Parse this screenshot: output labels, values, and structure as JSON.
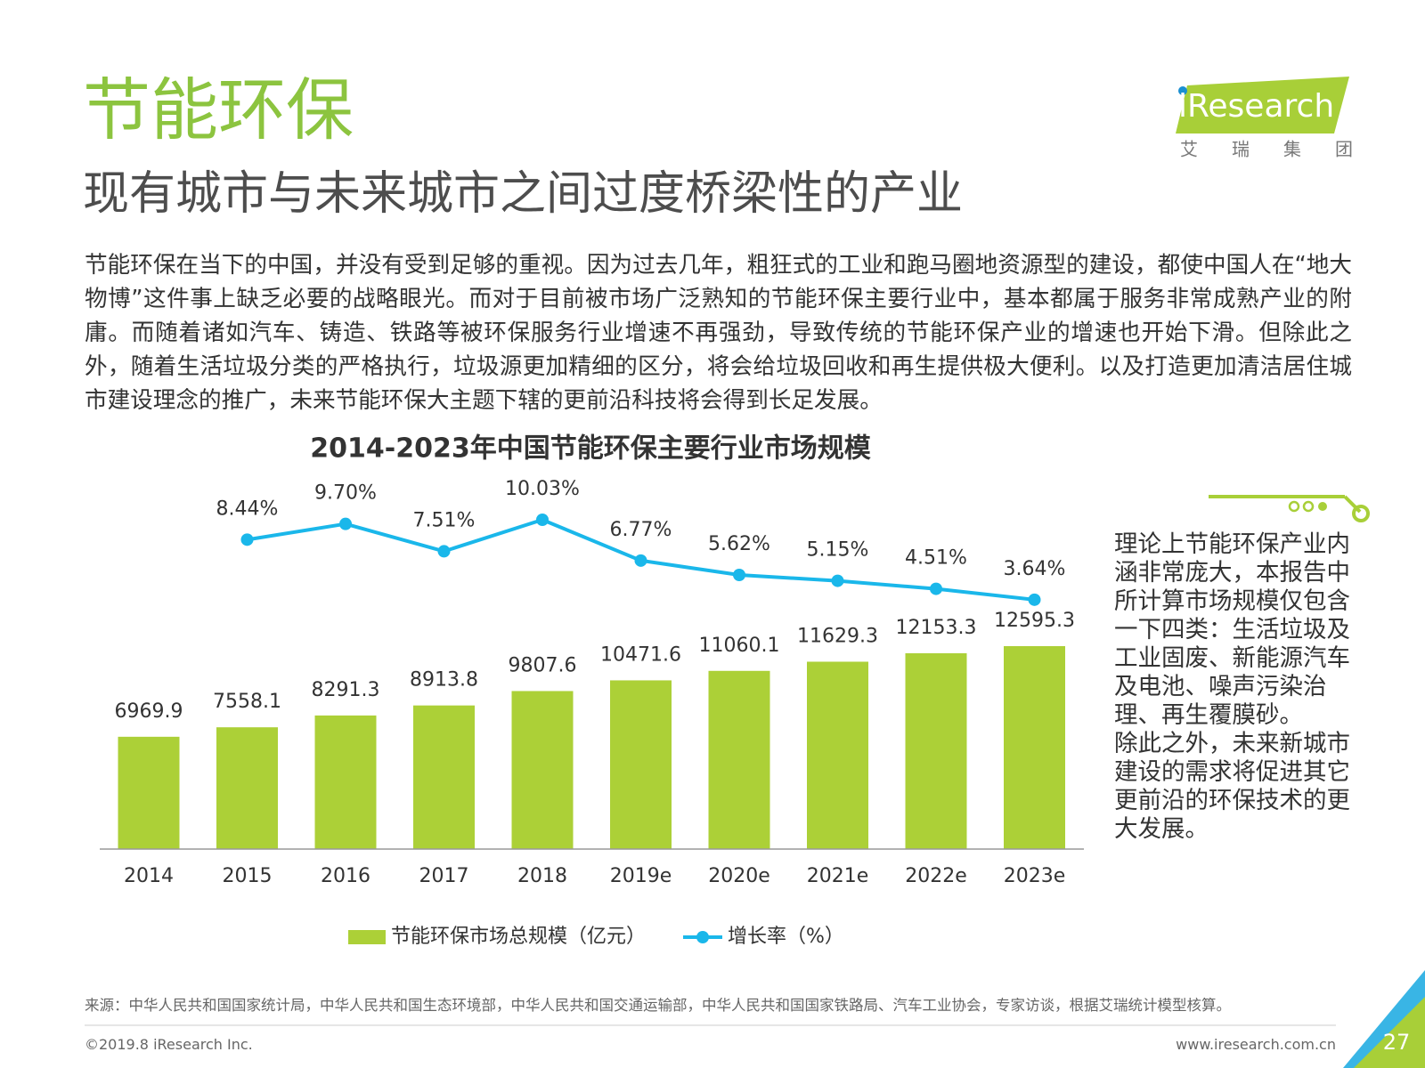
{
  "header": {
    "title": "节能环保",
    "subtitle": "现有城市与未来城市之间过度桥梁性的产业"
  },
  "logo": {
    "name": "iResearch",
    "tagline": "艾瑞集团"
  },
  "body": "节能环保在当下的中国，并没有受到足够的重视。因为过去几年，粗狂式的工业和跑马圈地资源型的建设，都使中国人在“地大物博”这件事上缺乏必要的战略眼光。而对于目前被市场广泛熟知的节能环保主要行业中，基本都属于服务非常成熟产业的附庸。而随着诸如汽车、铸造、铁路等被环保服务行业增速不再强劲，导致传统的节能环保产业的增速也开始下滑。但除此之外，随着生活垃圾分类的严格执行，垃圾源更加精细的区分，将会给垃圾回收和再生提供极大便利。以及打造更加清洁居住城市建设理念的推广，未来节能环保大主题下辖的更前沿科技将会得到长足发展。",
  "side_note": [
    "理论上节能环保产业内涵非常庞大，本报告中所计算市场规模仅包含一下四类：生活垃圾及工业固废、新能源汽车及电池、噪声污染治理、再生覆膜砂。",
    "除此之外，未来新城市建设的需求将促进其它更前沿的环保技术的更大发展。"
  ],
  "chart_data": {
    "type": "bar",
    "title": "2014-2023年中国节能环保主要行业市场规模",
    "categories": [
      "2014",
      "2015",
      "2016",
      "2017",
      "2018",
      "2019e",
      "2020e",
      "2021e",
      "2022e",
      "2023e"
    ],
    "series": [
      {
        "name": "节能环保市场总规模（亿元）",
        "type": "bar",
        "color": "#acd037",
        "values": [
          6969.9,
          7558.1,
          8291.3,
          8913.8,
          9807.6,
          10471.6,
          11060.1,
          11629.3,
          12153.3,
          12595.3
        ]
      },
      {
        "name": "增长率（%）",
        "type": "line",
        "color": "#1ab7ea",
        "values": [
          null,
          8.44,
          9.7,
          7.51,
          10.03,
          6.77,
          5.62,
          5.15,
          4.51,
          3.64
        ],
        "value_labels": [
          null,
          "8.44%",
          "9.70%",
          "7.51%",
          "10.03%",
          "6.77%",
          "5.62%",
          "5.15%",
          "4.51%",
          "3.64%"
        ]
      }
    ]
  },
  "footer": {
    "source": "来源：中华人民共和国国家统计局，中华人民共和国生态环境部，中华人民共和国交通运输部，中华人民共和国国家铁路局、汽车工业协会，专家访谈，根据艾瑞统计模型核算。",
    "copyright": "©2019.8 iResearch Inc.",
    "url": "www.iresearch.com.cn",
    "page_number": "27"
  }
}
